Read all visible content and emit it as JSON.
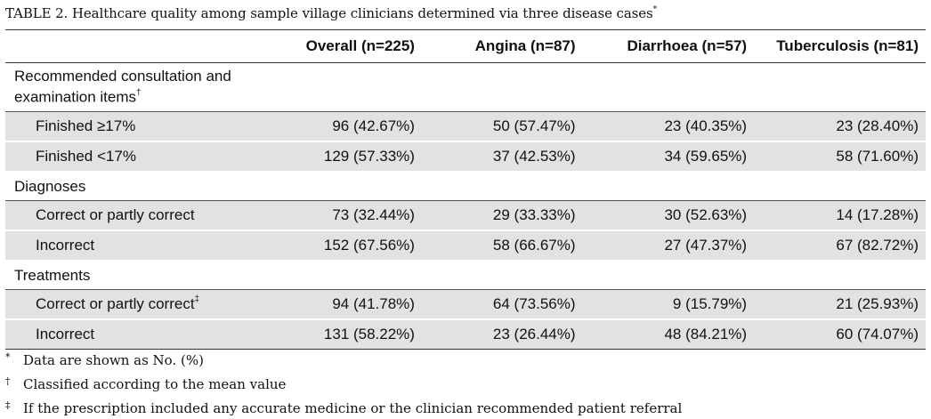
{
  "caption": {
    "text": "TABLE 2.  Healthcare quality among sample village clinicians determined via three disease cases",
    "marker": "*"
  },
  "table": {
    "columns": [
      "",
      "Overall (n=225)",
      "Angina (n=87)",
      "Diarrhoea (n=57)",
      "Tuberculosis (n=81)"
    ],
    "groups": [
      {
        "label_line1": "Recommended consultation and",
        "label_line2": "examination items",
        "marker": "†",
        "rows": [
          {
            "label": "Finished ≥17%",
            "marker": "",
            "values": [
              "96 (42.67%)",
              "50 (57.47%)",
              "23 (40.35%)",
              "23 (28.40%)"
            ]
          },
          {
            "label": "Finished <17%",
            "marker": "",
            "values": [
              "129 (57.33%)",
              "37 (42.53%)",
              "34 (59.65%)",
              "58 (71.60%)"
            ]
          }
        ]
      },
      {
        "label_line1": "Diagnoses",
        "rows": [
          {
            "label": "Correct or partly correct",
            "marker": "",
            "values": [
              "73 (32.44%)",
              "29 (33.33%)",
              "30 (52.63%)",
              "14 (17.28%)"
            ]
          },
          {
            "label": "Incorrect",
            "marker": "",
            "values": [
              "152 (67.56%)",
              "58 (66.67%)",
              "27 (47.37%)",
              "67 (82.72%)"
            ]
          }
        ]
      },
      {
        "label_line1": "Treatments",
        "rows": [
          {
            "label": "Correct or partly correct",
            "marker": "‡",
            "values": [
              "94 (41.78%)",
              "64 (73.56%)",
              "9 (15.79%)",
              "21 (25.93%)"
            ]
          },
          {
            "label": "Incorrect",
            "marker": "",
            "values": [
              "131 (58.22%)",
              "23 (26.44%)",
              "48 (84.21%)",
              "60 (74.07%)"
            ]
          }
        ]
      }
    ]
  },
  "footnotes": [
    {
      "symbol": "*",
      "text": "Data are shown as No. (%)"
    },
    {
      "symbol": "†",
      "text": "Classified according to the mean value"
    },
    {
      "symbol": "‡",
      "text": "If the prescription included any accurate medicine or the clinician recommended patient referral"
    }
  ]
}
